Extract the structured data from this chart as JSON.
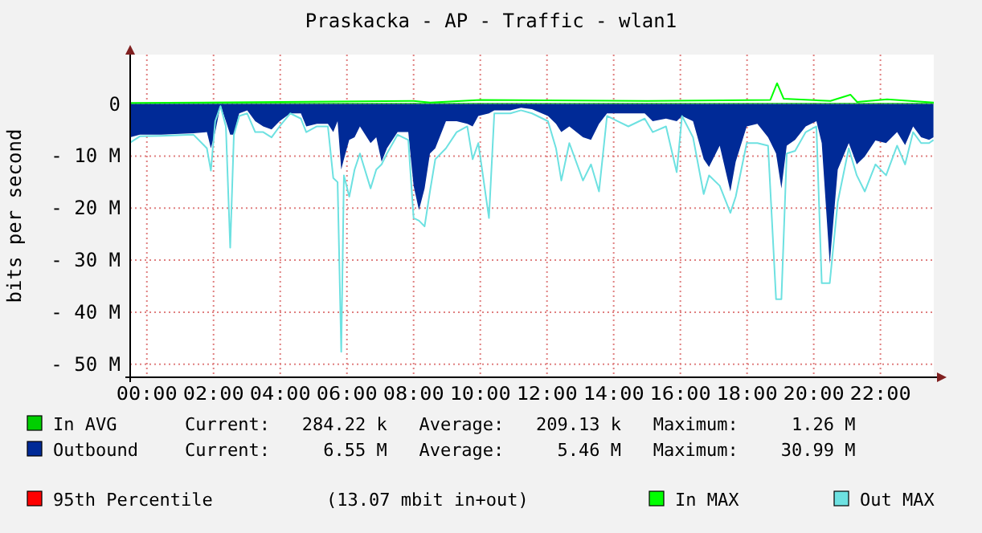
{
  "chart_data": {
    "type": "area",
    "title": "Praskacka - AP - Traffic - wlan1",
    "ylabel": "bits per second",
    "xlim": [
      -0.5,
      23.6
    ],
    "xticks": [
      {
        "value": 0,
        "label": "00:00"
      },
      {
        "value": 2,
        "label": "02:00"
      },
      {
        "value": 4,
        "label": "04:00"
      },
      {
        "value": 6,
        "label": "06:00"
      },
      {
        "value": 8,
        "label": "08:00"
      },
      {
        "value": 10,
        "label": "10:00"
      },
      {
        "value": 12,
        "label": "12:00"
      },
      {
        "value": 14,
        "label": "14:00"
      },
      {
        "value": 16,
        "label": "16:00"
      },
      {
        "value": 18,
        "label": "18:00"
      },
      {
        "value": 20,
        "label": "20:00"
      },
      {
        "value": 22,
        "label": "22:00"
      }
    ],
    "ylim": [
      -52.5,
      9.5
    ],
    "yticks": [
      {
        "value": -50,
        "label": "- 50 M"
      },
      {
        "value": -40,
        "label": "- 40 M"
      },
      {
        "value": -30,
        "label": "- 30 M"
      },
      {
        "value": -20,
        "label": "- 20 M"
      },
      {
        "value": -10,
        "label": "- 10 M"
      },
      0
    ],
    "grid": true,
    "legend": "bottom",
    "series": [
      {
        "name": "In AVG",
        "color": "#00cf00",
        "x": [
          -0.5,
          6,
          12,
          18,
          23.6
        ],
        "values": [
          0.2,
          0.2,
          0.2,
          0.2,
          0.2
        ]
      },
      {
        "name": "Outbound",
        "color": "#002a97",
        "x": [
          -0.5,
          -0.21,
          0.43,
          1.4,
          1.8,
          1.92,
          2.05,
          2.21,
          2.37,
          2.5,
          2.61,
          2.77,
          3.01,
          3.25,
          3.49,
          3.74,
          3.98,
          4.3,
          4.62,
          4.78,
          5.1,
          5.43,
          5.59,
          5.72,
          5.83,
          5.91,
          6.07,
          6.23,
          6.39,
          6.71,
          6.88,
          7.04,
          7.2,
          7.52,
          7.84,
          8.0,
          8.16,
          8.33,
          8.49,
          8.65,
          8.97,
          9.29,
          9.61,
          9.77,
          9.94,
          10.26,
          10.42,
          10.9,
          11.22,
          11.55,
          12.03,
          12.27,
          12.43,
          12.67,
          13.08,
          13.32,
          13.56,
          13.8,
          14.44,
          14.93,
          15.17,
          15.57,
          15.89,
          16.05,
          16.38,
          16.7,
          16.86,
          17.18,
          17.5,
          17.66,
          17.99,
          18.31,
          18.63,
          18.87,
          19.03,
          19.19,
          19.44,
          19.76,
          20.08,
          20.24,
          20.48,
          20.72,
          21.05,
          21.29,
          21.53,
          21.85,
          22.17,
          22.5,
          22.74,
          22.98,
          23.22,
          23.46,
          23.59
        ],
        "values": [
          -6.4,
          -5.9,
          -5.9,
          -5.6,
          -5.4,
          -8.5,
          -5.4,
          -0.2,
          -3.3,
          -5.9,
          -5.9,
          -1.8,
          -1.2,
          -3.3,
          -4.3,
          -4.9,
          -3.3,
          -1.8,
          -1.8,
          -4.3,
          -3.8,
          -3.8,
          -5.4,
          -3.3,
          -12.6,
          -10.6,
          -6.9,
          -6.4,
          -4.3,
          -7.5,
          -6.4,
          -11.1,
          -8.5,
          -5.4,
          -5.4,
          -15.7,
          -20.4,
          -16.2,
          -9.5,
          -8.5,
          -3.3,
          -3.3,
          -3.8,
          -4.3,
          -2.3,
          -1.8,
          -1.2,
          -1.2,
          -0.7,
          -1.0,
          -2.3,
          -3.8,
          -5.4,
          -4.3,
          -6.4,
          -6.9,
          -3.8,
          -1.8,
          -1.8,
          -1.8,
          -3.3,
          -2.8,
          -3.3,
          -2.3,
          -3.3,
          -10.6,
          -12.1,
          -8.0,
          -16.8,
          -11.1,
          -4.3,
          -3.8,
          -6.4,
          -9.5,
          -16.2,
          -8.0,
          -6.9,
          -4.3,
          -3.3,
          -7.5,
          -30.7,
          -12.6,
          -7.5,
          -11.6,
          -10.1,
          -7.0,
          -7.5,
          -5.4,
          -7.9,
          -4.3,
          -6.4,
          -6.9,
          -6.4
        ]
      },
      {
        "name": "In MAX",
        "type": "line",
        "color": "#00ff00",
        "x": [
          -0.5,
          4,
          8,
          8.5,
          10,
          15,
          18.7,
          18.9,
          19.1,
          20.5,
          21.1,
          21.3,
          22.2,
          23.6
        ],
        "values": [
          0.2,
          0.4,
          0.6,
          0.3,
          0.8,
          0.6,
          0.8,
          4.0,
          1.0,
          0.6,
          1.8,
          0.4,
          0.9,
          0.3
        ]
      },
      {
        "name": "Out MAX",
        "type": "line",
        "color": "#6de1e1",
        "x": [
          -0.5,
          -0.21,
          0.43,
          1.4,
          1.8,
          1.92,
          2.05,
          2.21,
          2.37,
          2.5,
          2.61,
          2.77,
          3.01,
          3.25,
          3.49,
          3.74,
          3.98,
          4.3,
          4.62,
          4.78,
          5.1,
          5.43,
          5.59,
          5.72,
          5.83,
          5.91,
          6.07,
          6.23,
          6.39,
          6.71,
          6.88,
          7.04,
          7.2,
          7.52,
          7.84,
          8.0,
          8.16,
          8.33,
          8.49,
          8.65,
          8.97,
          9.29,
          9.61,
          9.77,
          9.94,
          10.26,
          10.42,
          10.9,
          11.22,
          11.55,
          12.03,
          12.27,
          12.43,
          12.67,
          13.08,
          13.32,
          13.56,
          13.8,
          14.44,
          14.93,
          15.17,
          15.57,
          15.89,
          16.05,
          16.38,
          16.7,
          16.86,
          17.18,
          17.5,
          17.66,
          17.99,
          18.31,
          18.63,
          18.87,
          19.03,
          19.19,
          19.44,
          19.76,
          20.08,
          20.24,
          20.48,
          20.72,
          21.05,
          21.29,
          21.53,
          21.85,
          22.17,
          22.5,
          22.74,
          22.98,
          23.22,
          23.46,
          23.59
        ],
        "values": [
          -7.4,
          -6.2,
          -6.1,
          -5.9,
          -8.5,
          -12.8,
          -3.3,
          -0.4,
          -4.3,
          -27.6,
          -5.9,
          -2.3,
          -1.8,
          -5.4,
          -5.4,
          -6.4,
          -4.3,
          -1.8,
          -2.8,
          -5.4,
          -4.3,
          -4.3,
          -14.2,
          -15.0,
          -47.6,
          -13.7,
          -17.8,
          -12.6,
          -9.5,
          -16.2,
          -12.6,
          -11.6,
          -9.5,
          -5.9,
          -6.9,
          -21.9,
          -22.4,
          -23.5,
          -16.8,
          -10.6,
          -8.5,
          -5.4,
          -4.3,
          -10.6,
          -7.5,
          -21.9,
          -1.8,
          -1.8,
          -1.2,
          -1.8,
          -3.3,
          -8.5,
          -14.7,
          -7.5,
          -14.7,
          -11.6,
          -16.8,
          -2.3,
          -4.3,
          -2.8,
          -5.4,
          -4.3,
          -13.1,
          -2.3,
          -6.4,
          -17.3,
          -13.7,
          -15.7,
          -20.9,
          -17.8,
          -7.5,
          -7.5,
          -8.0,
          -37.5,
          -37.5,
          -9.5,
          -9.0,
          -5.4,
          -4.3,
          -34.4,
          -34.4,
          -18.8,
          -8.5,
          -13.7,
          -16.8,
          -11.6,
          -13.7,
          -8.0,
          -11.6,
          -5.4,
          -7.5,
          -7.5,
          -6.9
        ]
      }
    ],
    "annotations": [
      "Current:   284.22 k   Average:   209.13 k   Maximum:     1.26 M",
      "Current:     6.55 M   Average:     5.46 M   Maximum:    30.99 M",
      "95th Percentile",
      "(13.07 mbit in+out)"
    ]
  }
}
